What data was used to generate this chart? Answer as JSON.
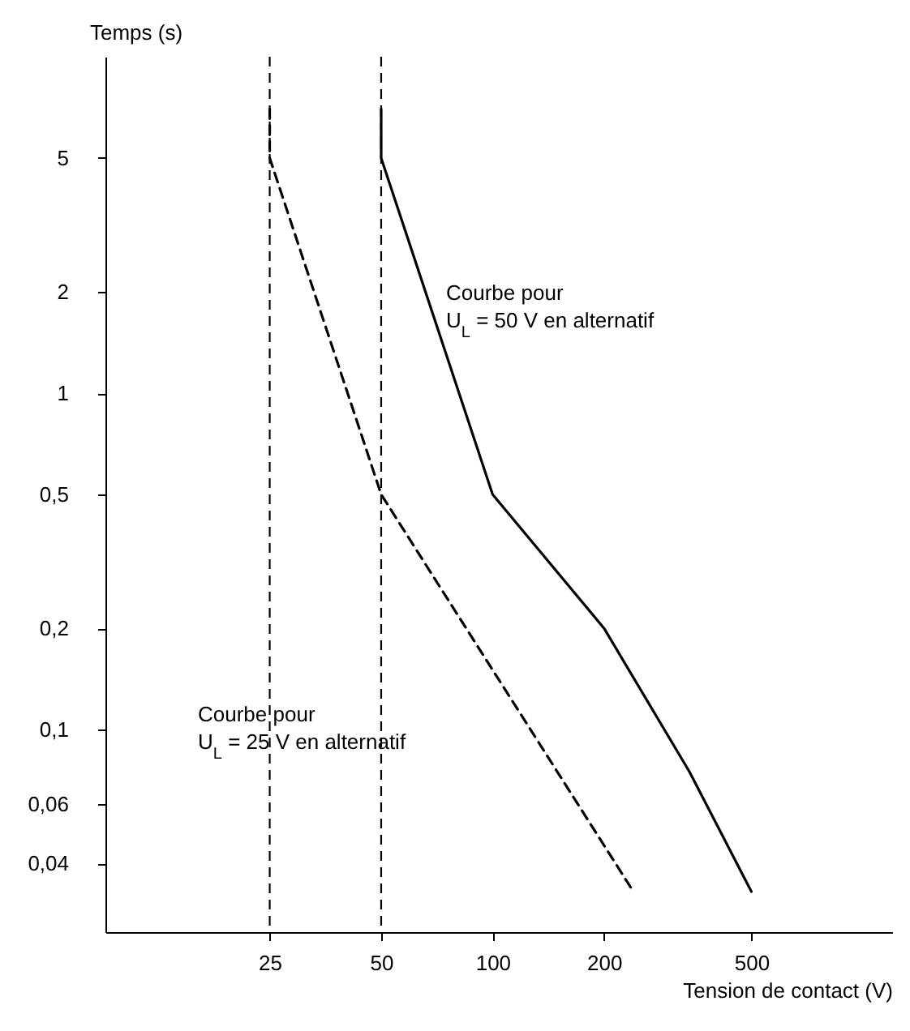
{
  "chart_data": {
    "type": "line",
    "xlabel": "Tension de contact (V)",
    "ylabel": "Temps (s)",
    "log": "xy",
    "grid": false,
    "marker": "none",
    "xlim": [
      9,
      1200
    ],
    "ylim": [
      0.025,
      10
    ],
    "xticks": [
      25,
      50,
      100,
      200,
      500
    ],
    "yticks": [
      {
        "value": 0.04,
        "label": "0,04"
      },
      {
        "value": 0.06,
        "label": "0,06"
      },
      {
        "value": 0.1,
        "label": "0,1"
      },
      {
        "value": 0.2,
        "label": "0,2"
      },
      {
        "value": 0.5,
        "label": "0,5"
      },
      1,
      2,
      5
    ],
    "series": [
      {
        "color": "#000000",
        "line_style": "solid",
        "x": [
          50,
          50,
          100,
          200,
          340,
          500
        ],
        "values": [
          7,
          5,
          0.5,
          0.2,
          0.075,
          0.033
        ]
      },
      {
        "color": "#000000",
        "line_style": "dashed",
        "x": [
          25,
          25,
          50,
          240
        ],
        "values": [
          7,
          5,
          0.5,
          0.033
        ]
      }
    ],
    "ref_lines": [
      {
        "axis": "x",
        "value": 25,
        "color": "#000000",
        "line_style": "dashed"
      },
      {
        "axis": "x",
        "value": 50,
        "color": "#000000",
        "line_style": "dashed"
      }
    ],
    "annotations": [
      "Courbe pour\nU$_{L}$ = 50 V en alternatif",
      "Courbe pour\nU$_{L}$ = 25 V en alternatif"
    ]
  }
}
